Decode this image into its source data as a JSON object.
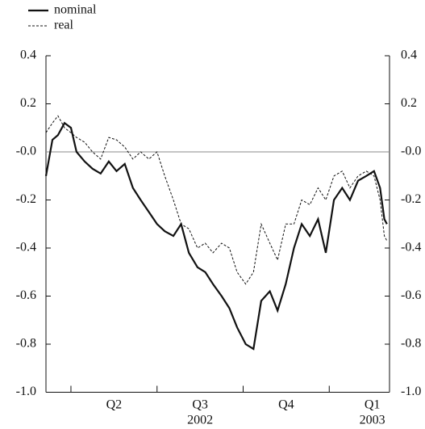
{
  "chart_data": {
    "type": "line",
    "x": [
      1.71,
      1.785,
      1.85,
      1.925,
      2.0,
      2.065,
      2.16,
      2.25,
      2.345,
      2.44,
      2.53,
      2.625,
      2.72,
      2.81,
      2.905,
      3.0,
      3.09,
      3.19,
      3.28,
      3.37,
      3.47,
      3.56,
      3.65,
      3.75,
      3.84,
      3.93,
      4.03,
      4.12,
      4.21,
      4.31,
      4.4,
      4.495,
      4.59,
      4.68,
      4.775,
      4.87,
      4.96,
      5.055,
      5.15,
      5.24,
      5.335,
      5.43,
      5.52,
      5.59,
      5.64,
      5.67
    ],
    "series": [
      {
        "name": "nominal",
        "color": "#111111",
        "style": "solid",
        "values": [
          -0.1,
          0.05,
          0.07,
          0.12,
          0.1,
          0.0,
          -0.04,
          -0.07,
          -0.09,
          -0.04,
          -0.08,
          -0.05,
          -0.15,
          -0.2,
          -0.25,
          -0.3,
          -0.33,
          -0.35,
          -0.3,
          -0.42,
          -0.48,
          -0.5,
          -0.55,
          -0.6,
          -0.65,
          -0.73,
          -0.8,
          -0.82,
          -0.62,
          -0.58,
          -0.66,
          -0.55,
          -0.4,
          -0.3,
          -0.35,
          -0.28,
          -0.42,
          -0.2,
          -0.15,
          -0.2,
          -0.12,
          -0.1,
          -0.08,
          -0.15,
          -0.28,
          -0.3
        ]
      },
      {
        "name": "real",
        "color": "#111111",
        "style": "dotted",
        "values": [
          0.08,
          0.12,
          0.15,
          0.1,
          0.08,
          0.06,
          0.04,
          0.0,
          -0.03,
          0.06,
          0.05,
          0.02,
          -0.03,
          0.0,
          -0.03,
          0.0,
          -0.1,
          -0.2,
          -0.3,
          -0.32,
          -0.4,
          -0.38,
          -0.42,
          -0.38,
          -0.4,
          -0.5,
          -0.55,
          -0.5,
          -0.3,
          -0.38,
          -0.45,
          -0.3,
          -0.3,
          -0.2,
          -0.22,
          -0.15,
          -0.2,
          -0.1,
          -0.08,
          -0.15,
          -0.1,
          -0.08,
          -0.1,
          -0.2,
          -0.35,
          -0.37
        ]
      }
    ],
    "xlim": [
      1.71,
      5.7
    ],
    "xticks": [
      {
        "value": 2.5,
        "label": "Q2"
      },
      {
        "value": 3.5,
        "label": "Q3"
      },
      {
        "value": 4.5,
        "label": "Q4"
      },
      {
        "value": 5.5,
        "label": "Q1"
      }
    ],
    "xtick_marks": [
      2,
      3,
      4,
      5
    ],
    "year_labels": [
      {
        "value": 3.5,
        "label": "2002"
      },
      {
        "value": 5.5,
        "label": "2003"
      }
    ],
    "ylim": [
      -1.0,
      0.4
    ],
    "yticks": [
      0.4,
      0.2,
      {
        "value": 0,
        "label": "-0.0"
      },
      -0.2,
      -0.4,
      -0.6,
      -0.8,
      {
        "value": -1.0,
        "label": "-1.0"
      }
    ],
    "y2lim": [
      -1.0,
      0.4
    ],
    "y2ticks": [
      0.4,
      0.2,
      {
        "value": 0,
        "label": "-0.0"
      },
      -0.2,
      -0.4,
      -0.6,
      -0.8,
      {
        "value": -1.0,
        "label": "-1.0"
      }
    ],
    "hline": 0,
    "hline_color": "#888888",
    "legend": "top-left"
  }
}
